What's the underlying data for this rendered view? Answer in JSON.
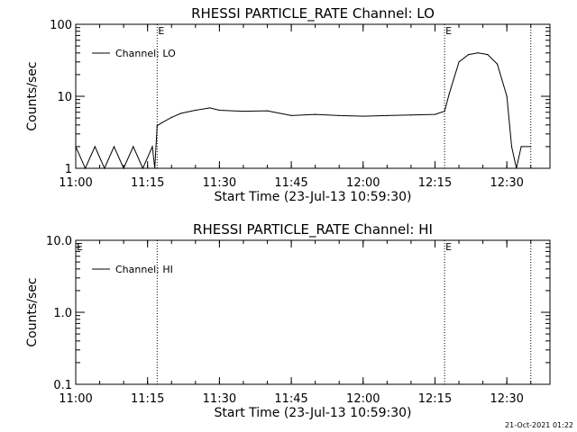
{
  "chart_data": [
    {
      "type": "line",
      "title": "RHESSI PARTICLE_RATE Channel: LO",
      "xlabel": "Start Time (23-Jul-13 10:59:30)",
      "ylabel": "Counts/sec",
      "yscale": "log",
      "ylim": [
        1,
        100
      ],
      "yticks": [
        "1",
        "10",
        "100"
      ],
      "xticks": [
        "11:00",
        "11:15",
        "11:30",
        "11:45",
        "12:00",
        "12:15",
        "12:30"
      ],
      "legend_entry": "Channel: LO",
      "legend_position": "top-left",
      "grid": false,
      "line_color": "#000000",
      "event_markers": [
        {
          "label": "E",
          "time": "11:17"
        },
        {
          "label": "E",
          "time": "12:17"
        }
      ],
      "dotted_lines": [
        "11:17",
        "12:17",
        "12:35"
      ],
      "series": [
        {
          "name": "Channel: LO",
          "x": [
            "11:00",
            "11:02",
            "11:04",
            "11:06",
            "11:08",
            "11:10",
            "11:12",
            "11:14",
            "11:16",
            "11:16:30",
            "11:17",
            "11:18",
            "11:20",
            "11:22",
            "11:25",
            "11:28",
            "11:30",
            "11:35",
            "11:40",
            "11:45",
            "11:50",
            "11:55",
            "12:00",
            "12:05",
            "12:10",
            "12:15",
            "12:17",
            "12:18",
            "12:20",
            "12:22",
            "12:24",
            "12:26",
            "12:28",
            "12:30",
            "12:31",
            "12:32",
            "12:33",
            "12:35"
          ],
          "y": [
            2,
            1,
            2,
            1,
            2,
            1,
            2,
            1,
            2,
            1,
            3.9,
            4.3,
            5.1,
            5.8,
            6.4,
            6.9,
            6.4,
            6.2,
            6.3,
            5.4,
            5.6,
            5.4,
            5.3,
            5.4,
            5.5,
            5.6,
            6.2,
            11,
            30,
            38,
            40,
            38,
            28,
            10,
            2,
            1,
            2,
            2
          ]
        }
      ]
    },
    {
      "type": "line",
      "title": "RHESSI PARTICLE_RATE Channel: HI",
      "xlabel": "Start Time (23-Jul-13 10:59:30)",
      "ylabel": "Counts/sec",
      "yscale": "log",
      "ylim": [
        0.1,
        10
      ],
      "yticks": [
        "0.1",
        "1.0",
        "10.0"
      ],
      "xticks": [
        "11:00",
        "11:15",
        "11:30",
        "11:45",
        "12:00",
        "12:15",
        "12:30"
      ],
      "legend_entry": "Channel: HI",
      "legend_position": "top-left",
      "grid": false,
      "line_color": "#000000",
      "event_markers": [
        {
          "label": "E",
          "time": "11:00"
        },
        {
          "label": "E",
          "time": "12:17"
        }
      ],
      "dotted_lines": [
        "11:17",
        "12:17",
        "12:35"
      ],
      "series": [
        {
          "name": "Channel: HI",
          "x": [],
          "y": []
        }
      ]
    }
  ],
  "footer": {
    "timestamp": "21-Oct-2021 01:22"
  }
}
